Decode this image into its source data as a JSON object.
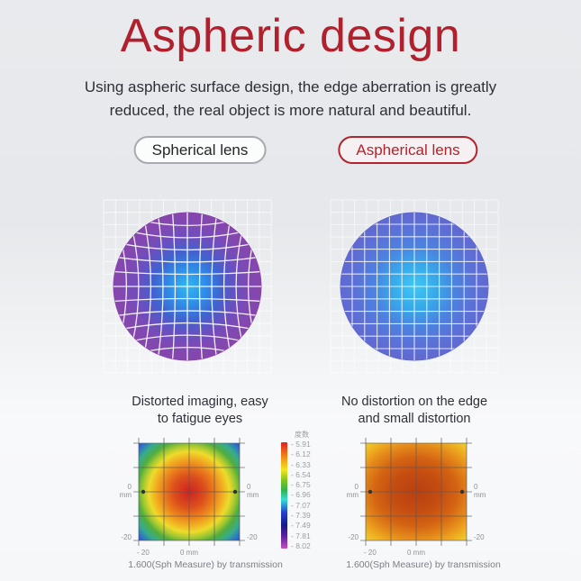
{
  "page": {
    "title": "Aspheric design",
    "subtitle_line1": "Using aspheric surface design, the edge aberration is greatly",
    "subtitle_line2": "reduced, the real object is more natural and beautiful.",
    "colors": {
      "accent_red": "#b0202d",
      "text_dark": "#2c3036",
      "background_gray": "#e8eaed",
      "lens_left_edge": "#8746ab",
      "lens_left_center": "#2fb9f2",
      "lens_right_edge": "#6168cf",
      "lens_right_center": "#3ec8f4"
    }
  },
  "comparison": {
    "left_label": "Spherical lens",
    "right_label": "Aspherical lens",
    "left_caption_line1": "Distorted imaging, easy",
    "left_caption_line2": "to fatigue eyes",
    "right_caption_line1": "No distortion on the edge",
    "right_caption_line2": "and small distortion"
  },
  "heatmap_section": {
    "legend_title": "度数",
    "legend_values": [
      "- 5.91",
      "- 6.12",
      "- 6.33",
      "- 6.54",
      "- 6.75",
      "- 6.96",
      "- 7.07",
      "- 7.39",
      "- 7.49",
      "- 7.81",
      "- 8.02"
    ],
    "axis_labels": {
      "zero": "0",
      "mm": "mm",
      "neg20": "-20",
      "bottom_left": "- 20",
      "bottom_center": "0 mm"
    },
    "left_footer": "1.600(Sph Measure) by transmission",
    "right_footer": "1.600(Sph Measure) by transmission"
  },
  "chart_data": [
    {
      "type": "heatmap",
      "title": "Spherical lens power map",
      "x_range_mm": [
        -20,
        20
      ],
      "y_range_mm": [
        -20,
        20
      ],
      "legend_title": "度数",
      "legend_scale": [
        -5.91,
        -6.12,
        -6.33,
        -6.54,
        -6.75,
        -6.96,
        -7.07,
        -7.39,
        -7.49,
        -7.81,
        -8.02
      ],
      "pattern": "concentric radial power falloff: red center, orange/yellow mid rings, green outer ring, blue corners",
      "footer": "1.600(Sph Measure) by transmission"
    },
    {
      "type": "heatmap",
      "title": "Aspherical lens power map",
      "x_range_mm": [
        -20,
        20
      ],
      "y_range_mm": [
        -20,
        20
      ],
      "legend_title": "度数",
      "legend_scale": [
        -5.91,
        -6.12,
        -6.33,
        -6.54,
        -6.75,
        -6.96,
        -7.07,
        -7.39,
        -7.49,
        -7.81,
        -8.02
      ],
      "pattern": "broad uniform dark-orange center, yellow-orange edges, green only at corners (less variation)",
      "footer": "1.600(Sph Measure) by transmission"
    }
  ]
}
